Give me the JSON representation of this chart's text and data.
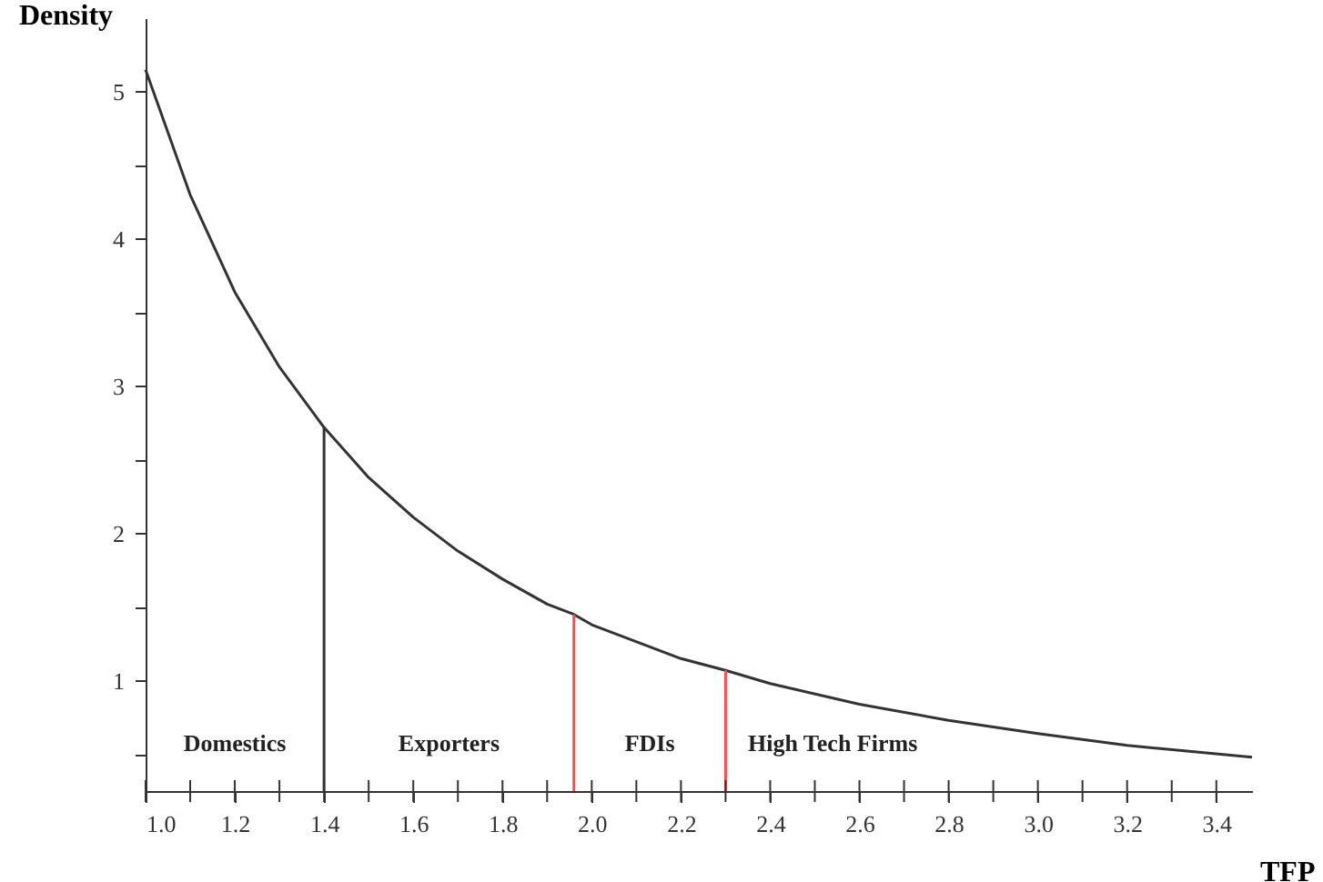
{
  "chart_data": {
    "type": "line",
    "xlabel": "TFP",
    "ylabel": "Density",
    "xlim": [
      1.0,
      3.48
    ],
    "ylim": [
      0.25,
      5.5
    ],
    "xticks": [
      {
        "value": 1.0,
        "label": "1.0"
      },
      {
        "value": 1.1,
        "label": null
      },
      {
        "value": 1.2,
        "label": "1.2"
      },
      {
        "value": 1.3,
        "label": null
      },
      {
        "value": 1.4,
        "label": "1.4"
      },
      {
        "value": 1.5,
        "label": null
      },
      {
        "value": 1.6,
        "label": "1.6"
      },
      {
        "value": 1.7,
        "label": null
      },
      {
        "value": 1.8,
        "label": "1.8"
      },
      {
        "value": 1.9,
        "label": null
      },
      {
        "value": 2.0,
        "label": "2.0"
      },
      {
        "value": 2.1,
        "label": null
      },
      {
        "value": 2.2,
        "label": "2.2"
      },
      {
        "value": 2.3,
        "label": null
      },
      {
        "value": 2.4,
        "label": "2.4"
      },
      {
        "value": 2.5,
        "label": null
      },
      {
        "value": 2.6,
        "label": "2.6"
      },
      {
        "value": 2.7,
        "label": null
      },
      {
        "value": 2.8,
        "label": "2.8"
      },
      {
        "value": 2.9,
        "label": null
      },
      {
        "value": 3.0,
        "label": "3.0"
      },
      {
        "value": 3.1,
        "label": null
      },
      {
        "value": 3.2,
        "label": "3.2"
      },
      {
        "value": 3.3,
        "label": null
      },
      {
        "value": 3.4,
        "label": "3.4"
      }
    ],
    "yticks": [
      {
        "value": 0.5,
        "label": null
      },
      1,
      {
        "value": 1.5,
        "label": null
      },
      2,
      {
        "value": 2.5,
        "label": null
      },
      3,
      {
        "value": 3.5,
        "label": null
      },
      4,
      {
        "value": 4.5,
        "label": null
      },
      5
    ],
    "grid": false,
    "marker": "none",
    "line_style": "solid",
    "series": [
      {
        "color": "#333333",
        "x": [
          1.0,
          1.1,
          1.2,
          1.3,
          1.4,
          1.5,
          1.6,
          1.7,
          1.8,
          1.9,
          1.96,
          2.0,
          2.2,
          2.3,
          2.4,
          2.6,
          2.8,
          3.0,
          3.2,
          3.48
        ],
        "values": [
          5.15,
          4.3,
          3.64,
          3.13,
          2.72,
          2.38,
          2.11,
          1.88,
          1.69,
          1.52,
          1.45,
          1.38,
          1.15,
          1.07,
          0.98,
          0.84,
          0.73,
          0.64,
          0.56,
          0.48
        ]
      },
      {
        "color": "#333333",
        "x": [
          1.4,
          1.4
        ],
        "values": [
          0.25,
          2.72
        ]
      },
      {
        "color": "#ff4d4d",
        "x": [
          1.96,
          1.96
        ],
        "values": [
          0.25,
          1.45
        ]
      },
      {
        "color": "#ff4d4d",
        "x": [
          2.3,
          2.3
        ],
        "values": [
          0.25,
          1.07
        ]
      }
    ],
    "annotations": [
      "Domestics",
      "Exporters",
      "FDIs",
      "High Tech Firms"
    ]
  }
}
